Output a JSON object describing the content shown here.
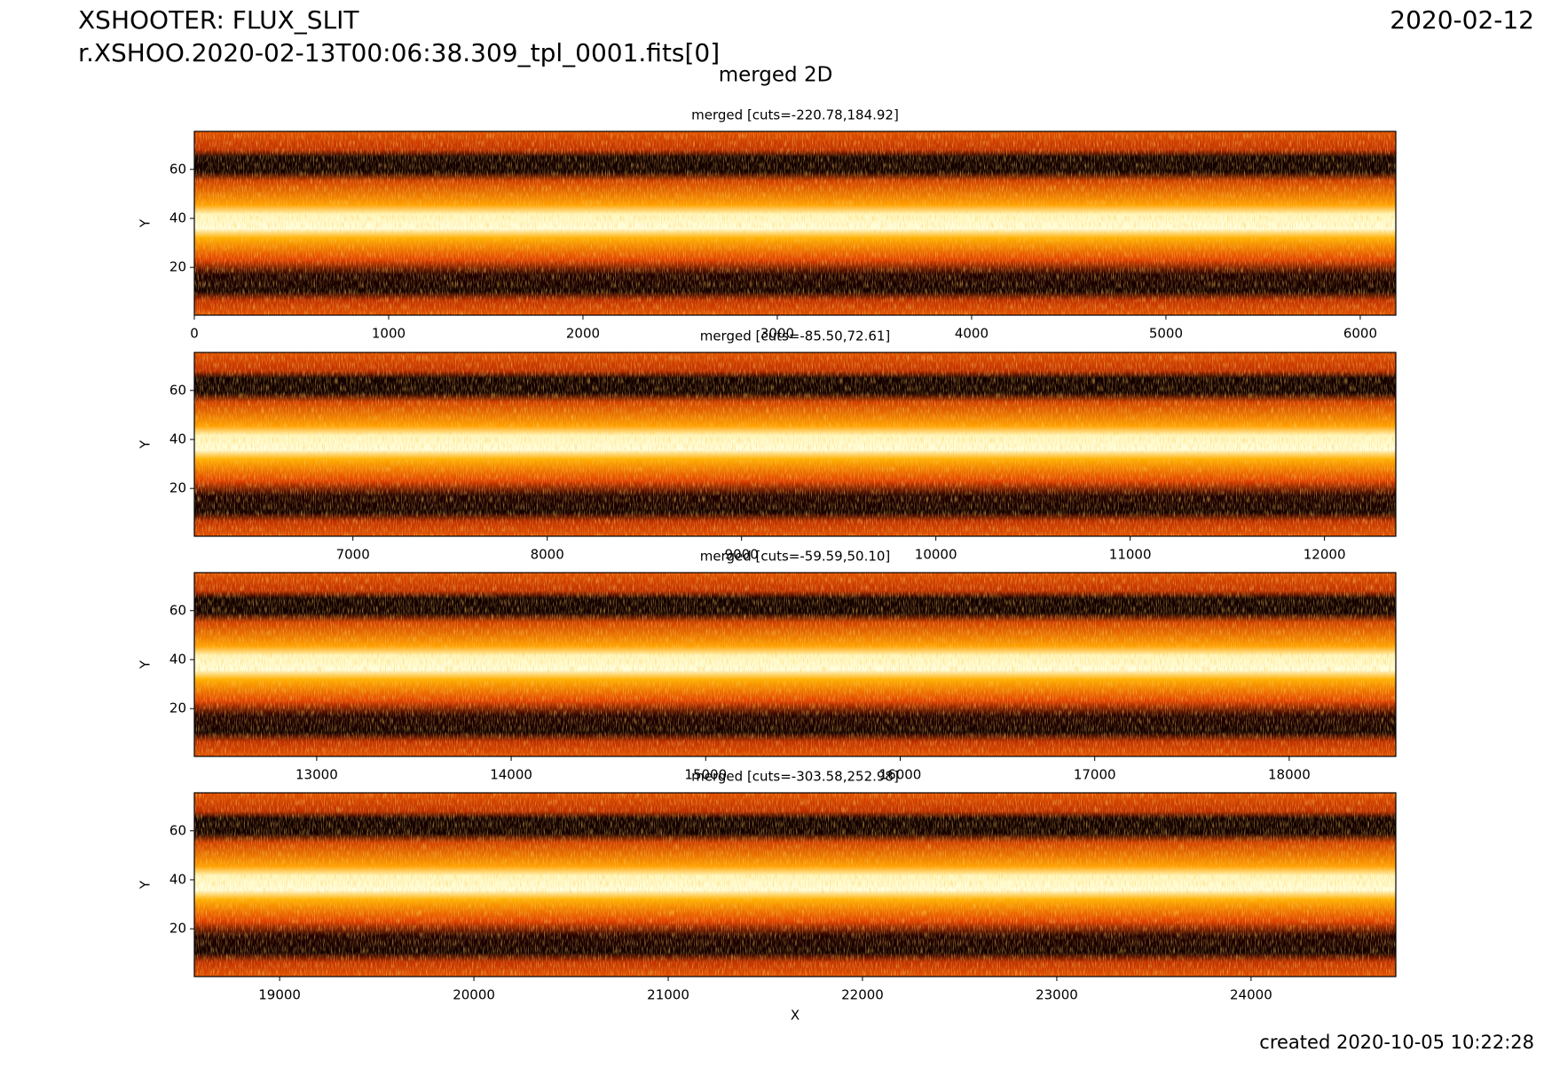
{
  "header": {
    "title": "XSHOOTER: FLUX_SLIT",
    "file": "r.XSHOO.2020-02-13T00:06:38.309_tpl_0001.fits[0]",
    "date": "2020-02-12",
    "subtitle": "merged 2D"
  },
  "footer": "created 2020-10-05 10:22:28",
  "chart_data": [
    {
      "type": "image",
      "title": "merged [cuts=-220.78,184.92]",
      "ylabel": "Y",
      "xlim": [
        0,
        6183
      ],
      "ylim": [
        0.5,
        75.5
      ],
      "xticks": [
        0,
        1000,
        2000,
        3000,
        4000,
        5000,
        6000
      ],
      "yticks": [
        20,
        40,
        60
      ]
    },
    {
      "type": "image",
      "title": "merged [cuts=-85.50,72.61]",
      "ylabel": "Y",
      "xlim": [
        6184,
        12367
      ],
      "ylim": [
        0.5,
        75.5
      ],
      "xticks": [
        7000,
        8000,
        9000,
        10000,
        11000,
        12000
      ],
      "yticks": [
        20,
        40,
        60
      ]
    },
    {
      "type": "image",
      "title": "merged [cuts=-59.59,50.10]",
      "ylabel": "Y",
      "xlim": [
        12371,
        18548
      ],
      "ylim": [
        0.5,
        75.5
      ],
      "xticks": [
        13000,
        14000,
        15000,
        16000,
        17000,
        18000
      ],
      "yticks": [
        20,
        40,
        60
      ]
    },
    {
      "type": "image",
      "title": "merged [cuts=-303.58,252.98]",
      "ylabel": "Y",
      "xlabel": "X",
      "xlim": [
        18561,
        24745
      ],
      "ylim": [
        0.5,
        75.5
      ],
      "xticks": [
        19000,
        20000,
        21000,
        22000,
        23000,
        24000
      ],
      "yticks": [
        20,
        40,
        60
      ]
    }
  ]
}
